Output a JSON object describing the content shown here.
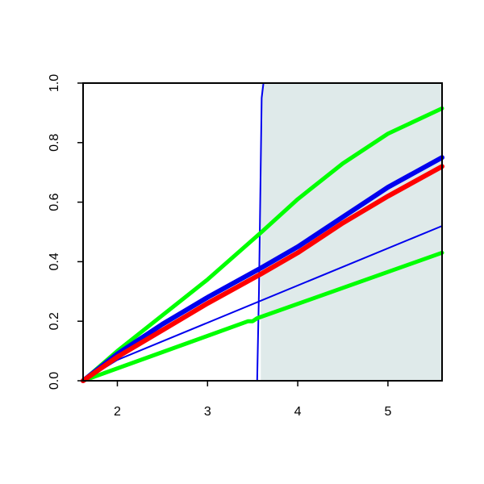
{
  "chart_data": {
    "type": "line",
    "xlim": [
      1.62,
      5.6
    ],
    "ylim": [
      0,
      1
    ],
    "xticks": [
      2,
      3,
      4,
      5
    ],
    "yticks": [
      {
        "value": 0,
        "label": "0.0"
      },
      {
        "value": 0.2,
        "label": "0.2"
      },
      {
        "value": 0.4,
        "label": "0.4"
      },
      {
        "value": 0.6,
        "label": "0.6"
      },
      {
        "value": 0.8,
        "label": "0.8"
      },
      {
        "value": 1,
        "label": "1.0"
      }
    ],
    "shaded_region": {
      "x": [
        3.59,
        5.6
      ],
      "color": "#dfeaea"
    },
    "series": [
      {
        "color": "#0000ee",
        "line_width": 2,
        "x": [
          1.62,
          3.55,
          3.57,
          3.6,
          3.62,
          5.6
        ],
        "values": [
          0,
          0,
          0.3,
          0.95,
          1.0,
          1.0
        ]
      },
      {
        "color": "#00ff00",
        "line_width": 5,
        "x": [
          1.62,
          2.0,
          2.5,
          3.0,
          3.3,
          3.6,
          4.0,
          4.5,
          5.0,
          5.6
        ],
        "values": [
          0,
          0.1,
          0.22,
          0.34,
          0.42,
          0.5,
          0.61,
          0.73,
          0.83,
          0.915
        ]
      },
      {
        "color": "#00ff00",
        "line_width": 5,
        "x": [
          1.62,
          3.45,
          3.5,
          3.55,
          5.6
        ],
        "values": [
          0,
          0.2,
          0.2,
          0.21,
          0.43
        ]
      },
      {
        "color": "#0000ee",
        "line_width": 2,
        "x": [
          1.62,
          2.0,
          5.6
        ],
        "values": [
          0,
          0.07,
          0.52
        ]
      },
      {
        "color": "#0000ee",
        "line_width": 6,
        "x": [
          1.62,
          2.0,
          2.5,
          3.0,
          3.6,
          4.0,
          4.5,
          5.0,
          5.6
        ],
        "values": [
          0,
          0.09,
          0.19,
          0.28,
          0.38,
          0.45,
          0.55,
          0.65,
          0.75
        ]
      },
      {
        "color": "#ff0000",
        "line_width": 6,
        "x": [
          1.62,
          2.0,
          2.5,
          3.0,
          3.6,
          4.0,
          4.5,
          5.0,
          5.6
        ],
        "values": [
          0,
          0.08,
          0.17,
          0.26,
          0.36,
          0.43,
          0.53,
          0.62,
          0.72
        ]
      }
    ]
  }
}
